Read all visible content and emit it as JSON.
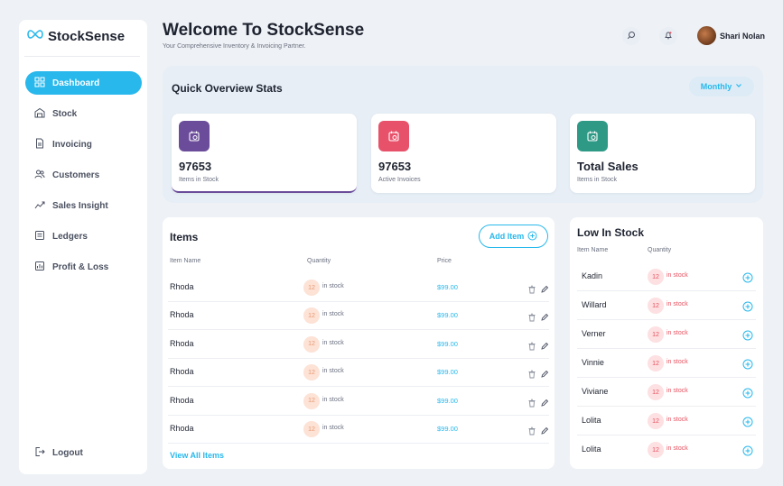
{
  "brand": {
    "name": "StockSense"
  },
  "sidebar": {
    "items": [
      {
        "label": "Dashboard",
        "icon": "dashboard-icon",
        "active": true
      },
      {
        "label": "Stock",
        "icon": "warehouse-icon"
      },
      {
        "label": "Invoicing",
        "icon": "document-icon"
      },
      {
        "label": "Customers",
        "icon": "users-icon"
      },
      {
        "label": "Sales Insight",
        "icon": "trend-icon"
      },
      {
        "label": "Ledgers",
        "icon": "ledger-icon"
      },
      {
        "label": "Profit & Loss",
        "icon": "report-icon"
      }
    ],
    "logout": "Logout"
  },
  "header": {
    "title": "Welcome To StockSense",
    "subtitle": "Your Comprehensive Inventory & Invoicing Partner.",
    "user_name": "Shari Nolan"
  },
  "overview": {
    "title": "Quick Overview Stats",
    "period": "Monthly",
    "cards": [
      {
        "value": "97653",
        "label": "Items in Stock",
        "color": "#6b4c9a"
      },
      {
        "value": "97653",
        "label": "Active Invoices",
        "color": "#e8516a"
      },
      {
        "value": "Total Sales",
        "label": "Items in Stock",
        "color": "#2e9a86"
      }
    ]
  },
  "items": {
    "title": "Items",
    "add_label": "Add Item",
    "columns": {
      "name": "Item Name",
      "quantity": "Quantity",
      "price": "Price"
    },
    "stock_word": "in stock",
    "rows": [
      {
        "name": "Rhoda",
        "qty": "12",
        "price": "$99.00"
      },
      {
        "name": "Rhoda",
        "qty": "12",
        "price": "$99.00"
      },
      {
        "name": "Rhoda",
        "qty": "12",
        "price": "$99.00"
      },
      {
        "name": "Rhoda",
        "qty": "12",
        "price": "$99.00"
      },
      {
        "name": "Rhoda",
        "qty": "12",
        "price": "$99.00"
      },
      {
        "name": "Rhoda",
        "qty": "12",
        "price": "$99.00"
      }
    ],
    "view_all": "View All Items"
  },
  "low_stock": {
    "title": "Low In Stock",
    "columns": {
      "name": "Item Name",
      "quantity": "Quantity"
    },
    "stock_word": "in stock",
    "rows": [
      {
        "name": "Kadin",
        "qty": "12"
      },
      {
        "name": "Willard",
        "qty": "12"
      },
      {
        "name": "Verner",
        "qty": "12"
      },
      {
        "name": "Vinnie",
        "qty": "12"
      },
      {
        "name": "Viviane",
        "qty": "12"
      },
      {
        "name": "Lolita",
        "qty": "12"
      },
      {
        "name": "Lolita",
        "qty": "12"
      }
    ]
  },
  "colors": {
    "accent": "#28b8ec",
    "active_stat_underline": "#6b4c9a"
  }
}
